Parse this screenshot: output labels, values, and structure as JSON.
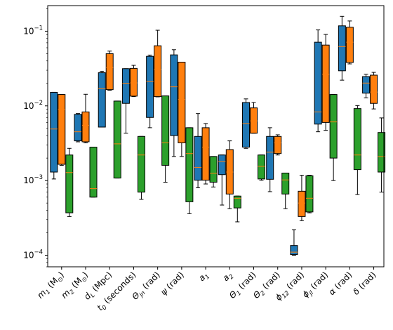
{
  "chart_data": {
    "type": "box",
    "y_scale": "log",
    "ylim": [
      7e-05,
      0.22
    ],
    "y_ticks": [
      {
        "value": 0.0001,
        "base": "10",
        "exp": "−4"
      },
      {
        "value": 0.001,
        "base": "10",
        "exp": "−3"
      },
      {
        "value": 0.01,
        "base": "10",
        "exp": "−2"
      },
      {
        "value": 0.1,
        "base": "10",
        "exp": "−1"
      }
    ],
    "categories": [
      {
        "main": "m",
        "sub": "1",
        "rest": " (M",
        "sub2": "⊙",
        "end": ")"
      },
      {
        "main": "m",
        "sub": "2",
        "rest": " (M",
        "sub2": "⊙",
        "end": ")"
      },
      {
        "main": "d",
        "sub": "L",
        "rest": " (Mpc)",
        "sub2": "",
        "end": ""
      },
      {
        "main": "t",
        "sub": "0",
        "rest": " (seconds)",
        "sub2": "",
        "end": ""
      },
      {
        "main": "Θ",
        "sub": "jn",
        "rest": " (rad)",
        "sub2": "",
        "end": ""
      },
      {
        "main": "ψ",
        "sub": "",
        "rest": " (rad)",
        "sub2": "",
        "end": ""
      },
      {
        "main": "a",
        "sub": "1",
        "rest": "",
        "sub2": "",
        "end": ""
      },
      {
        "main": "a",
        "sub": "2",
        "rest": "",
        "sub2": "",
        "end": ""
      },
      {
        "main": "Θ",
        "sub": "1",
        "rest": " (rad)",
        "sub2": "",
        "end": ""
      },
      {
        "main": "Θ",
        "sub": "2",
        "rest": " (rad)",
        "sub2": "",
        "end": ""
      },
      {
        "main": "ϕ",
        "sub": "12",
        "rest": " (rad)",
        "sub2": "",
        "end": ""
      },
      {
        "main": "ϕ",
        "sub": "jl",
        "rest": " (rad)",
        "sub2": "",
        "end": ""
      },
      {
        "main": "α",
        "sub": "",
        "rest": " (rad)",
        "sub2": "",
        "end": ""
      },
      {
        "main": "δ",
        "sub": "",
        "rest": " (rad)",
        "sub2": "",
        "end": ""
      }
    ],
    "median_color": "#ff7f0e",
    "series": [
      {
        "color": "#1f77b4",
        "boxes": [
          {
            "whislo": 0.00105,
            "q1": 0.0013,
            "med": 0.0049,
            "q3": 0.0152,
            "whishi": 0.0152
          },
          {
            "whislo": 0.0033,
            "q1": 0.0034,
            "med": 0.0045,
            "q3": 0.0077,
            "whishi": 0.0079
          },
          {
            "whislo": 0.0052,
            "q1": 0.0052,
            "med": 0.017,
            "q3": 0.0278,
            "whishi": 0.0291
          },
          {
            "whislo": 0.0043,
            "q1": 0.0108,
            "med": 0.0201,
            "q3": 0.0315,
            "whishi": 0.0315
          },
          {
            "whislo": 0.0051,
            "q1": 0.007,
            "med": 0.0212,
            "q3": 0.0461,
            "whishi": 0.0479
          },
          {
            "whislo": 0.0021,
            "q1": 0.004,
            "med": 0.018,
            "q3": 0.0482,
            "whishi": 0.0565
          },
          {
            "whislo": 0.0008,
            "q1": 0.00101,
            "med": 0.0015,
            "q3": 0.0039,
            "whishi": 0.0079
          },
          {
            "whislo": 0.00047,
            "q1": 0.0012,
            "med": 0.0018,
            "q3": 0.0022,
            "whishi": 0.0022
          },
          {
            "whislo": 0.0027,
            "q1": 0.0028,
            "med": 0.0058,
            "q3": 0.0111,
            "whishi": 0.0124
          },
          {
            "whislo": 0.00071,
            "q1": 0.00104,
            "med": 0.0024,
            "q3": 0.0039,
            "whishi": 0.0051
          },
          {
            "whislo": 0.0001,
            "q1": 0.000102,
            "med": 0.00011,
            "q3": 0.000135,
            "whishi": 0.00022
          },
          {
            "whislo": 0.0045,
            "q1": 0.0057,
            "med": 0.0083,
            "q3": 0.0712,
            "whishi": 0.104
          },
          {
            "whislo": 0.0221,
            "q1": 0.0295,
            "med": 0.0622,
            "q3": 0.118,
            "whishi": 0.158
          },
          {
            "whislo": 0.0128,
            "q1": 0.0148,
            "med": 0.0202,
            "q3": 0.0247,
            "whishi": 0.0265
          }
        ]
      },
      {
        "color": "#ff7f0e",
        "boxes": [
          {
            "whislo": 0.0016,
            "q1": 0.00165,
            "med": 0.009,
            "q3": 0.0142,
            "whishi": 0.0142
          },
          {
            "whislo": 0.0032,
            "q1": 0.0033,
            "med": 0.0055,
            "q3": 0.0083,
            "whishi": 0.0143
          },
          {
            "whislo": 0.0162,
            "q1": 0.0165,
            "med": 0.0326,
            "q3": 0.05,
            "whishi": 0.0541
          },
          {
            "whislo": 0.0133,
            "q1": 0.0135,
            "med": 0.0203,
            "q3": 0.0318,
            "whishi": 0.0349
          },
          {
            "whislo": 0.0132,
            "q1": 0.0133,
            "med": 0.0309,
            "q3": 0.0638,
            "whishi": 0.103
          },
          {
            "whislo": 0.0021,
            "q1": 0.0032,
            "med": 0.0122,
            "q3": 0.0385,
            "whishi": 0.0385
          },
          {
            "whislo": 0.0009,
            "q1": 0.00101,
            "med": 0.0028,
            "q3": 0.0051,
            "whishi": 0.0058
          },
          {
            "whislo": 0.00042,
            "q1": 0.00066,
            "med": 0.0013,
            "q3": 0.0026,
            "whishi": 0.0034
          },
          {
            "whislo": 0.0043,
            "q1": 0.0043,
            "med": 0.0063,
            "q3": 0.0094,
            "whishi": 0.0111
          },
          {
            "whislo": 0.0022,
            "q1": 0.0023,
            "med": 0.0032,
            "q3": 0.0039,
            "whishi": 0.0041
          },
          {
            "whislo": 0.00029,
            "q1": 0.00033,
            "med": 0.0005,
            "q3": 0.00072,
            "whishi": 0.00118
          },
          {
            "whislo": 0.0047,
            "q1": 0.006,
            "med": 0.0265,
            "q3": 0.0652,
            "whishi": 0.0905
          },
          {
            "whislo": 0.0365,
            "q1": 0.0381,
            "med": 0.0712,
            "q3": 0.113,
            "whishi": 0.137
          },
          {
            "whislo": 0.0091,
            "q1": 0.0108,
            "med": 0.0153,
            "q3": 0.0258,
            "whishi": 0.0281
          }
        ]
      },
      {
        "color": "#2ca02c",
        "boxes": [
          {
            "whislo": 0.00033,
            "q1": 0.00037,
            "med": 0.00128,
            "q3": 0.0022,
            "whishi": 0.0027
          },
          {
            "whislo": 0.0006,
            "q1": 0.0006,
            "med": 0.00078,
            "q3": 0.0028,
            "whishi": 0.0028
          },
          {
            "whislo": 0.00108,
            "q1": 0.00108,
            "med": 0.0031,
            "q3": 0.0116,
            "whishi": 0.0116
          },
          {
            "whislo": 0.00056,
            "q1": 0.0007,
            "med": 0.0022,
            "q3": 0.0039,
            "whishi": 0.0039
          },
          {
            "whislo": 0.00095,
            "q1": 0.0016,
            "med": 0.0032,
            "q3": 0.0136,
            "whishi": 0.0136
          },
          {
            "whislo": 0.00036,
            "q1": 0.00052,
            "med": 0.0023,
            "q3": 0.0051,
            "whishi": 0.0051
          },
          {
            "whislo": 0.00082,
            "q1": 0.00095,
            "med": 0.00125,
            "q3": 0.0021,
            "whishi": 0.0021
          },
          {
            "whislo": 0.00028,
            "q1": 0.00043,
            "med": 0.00058,
            "q3": 0.00062,
            "whishi": 0.00062
          },
          {
            "whislo": 0.00101,
            "q1": 0.00105,
            "med": 0.00155,
            "q3": 0.0022,
            "whishi": 0.0022
          },
          {
            "whislo": 0.00042,
            "q1": 0.00066,
            "med": 0.00102,
            "q3": 0.00126,
            "whishi": 0.00126
          },
          {
            "whislo": 0.00037,
            "q1": 0.00038,
            "med": 0.00058,
            "q3": 0.00116,
            "whishi": 0.00118
          },
          {
            "whislo": 0.001,
            "q1": 0.002,
            "med": 0.0061,
            "q3": 0.0142,
            "whishi": 0.0142
          },
          {
            "whislo": 0.00065,
            "q1": 0.0014,
            "med": 0.0022,
            "q3": 0.0092,
            "whishi": 0.0101
          },
          {
            "whislo": 0.0007,
            "q1": 0.0013,
            "med": 0.0021,
            "q3": 0.0044,
            "whishi": 0.0069
          }
        ]
      }
    ]
  }
}
